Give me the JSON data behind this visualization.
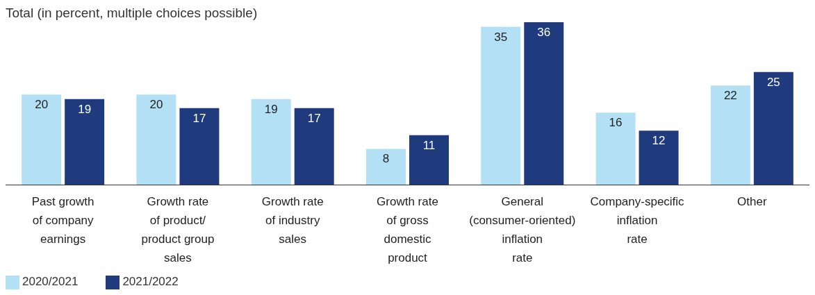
{
  "chart_data": {
    "type": "bar",
    "title": "Total (in percent, multiple choices possible)",
    "categories": [
      "Past growth of company earnings",
      "Growth rate of product/ product group sales",
      "Growth rate of industry sales",
      "Growth rate of gross domestic product",
      "General (consumer-oriented) inflation rate",
      "Company-specific inflation rate",
      "Other"
    ],
    "series": [
      {
        "name": "2020/2021",
        "color": "#b3e0f5",
        "values": [
          20,
          20,
          19,
          8,
          35,
          16,
          22
        ]
      },
      {
        "name": "2021/2022",
        "color": "#1f3a7d",
        "values": [
          19,
          17,
          17,
          11,
          36,
          12,
          25
        ]
      }
    ],
    "data_labels": true,
    "legend": "bottom left",
    "grid": false
  }
}
